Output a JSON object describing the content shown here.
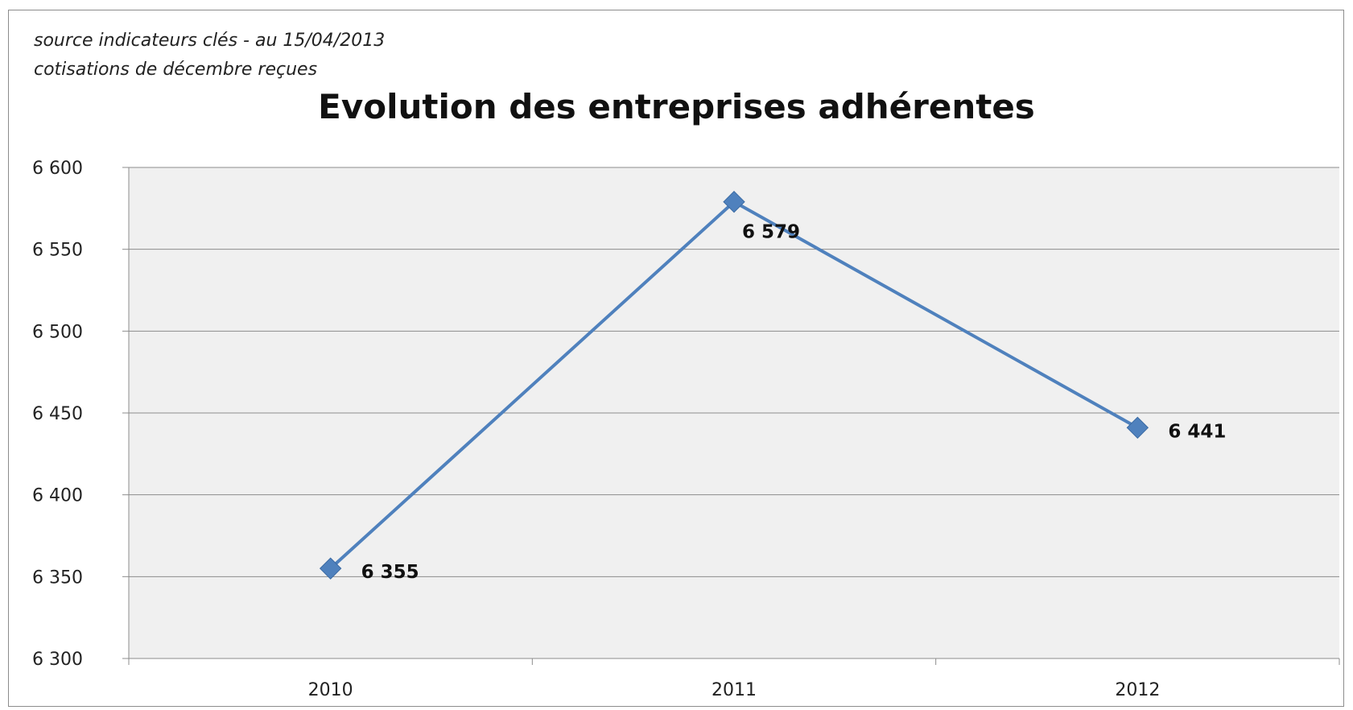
{
  "chart_data": {
    "type": "line",
    "notes": [
      "source indicateurs clés  - au 15/04/2013",
      "cotisations de décembre reçues"
    ],
    "title": "Evolution des entreprises adhérentes",
    "xlabel": "",
    "ylabel": "",
    "categories": [
      "2010",
      "2011",
      "2012"
    ],
    "series": [
      {
        "values": [
          6355,
          6579,
          6441
        ],
        "labels": [
          "6 355",
          "6 579",
          "6 441"
        ]
      }
    ],
    "ylim": [
      6300,
      6600
    ],
    "yticks": [
      6300,
      6350,
      6400,
      6450,
      6500,
      6550,
      6600
    ],
    "ytick_labels": [
      "6 300",
      "6 350",
      "6 400",
      "6 450",
      "6 500",
      "6 550",
      "6 600"
    ],
    "grid": true,
    "legend": "none",
    "colors": {
      "line": "#4f81bd",
      "marker": "#4f81bd",
      "plot_bg": "#f0f0f0",
      "grid": "#8c8c8c"
    }
  }
}
